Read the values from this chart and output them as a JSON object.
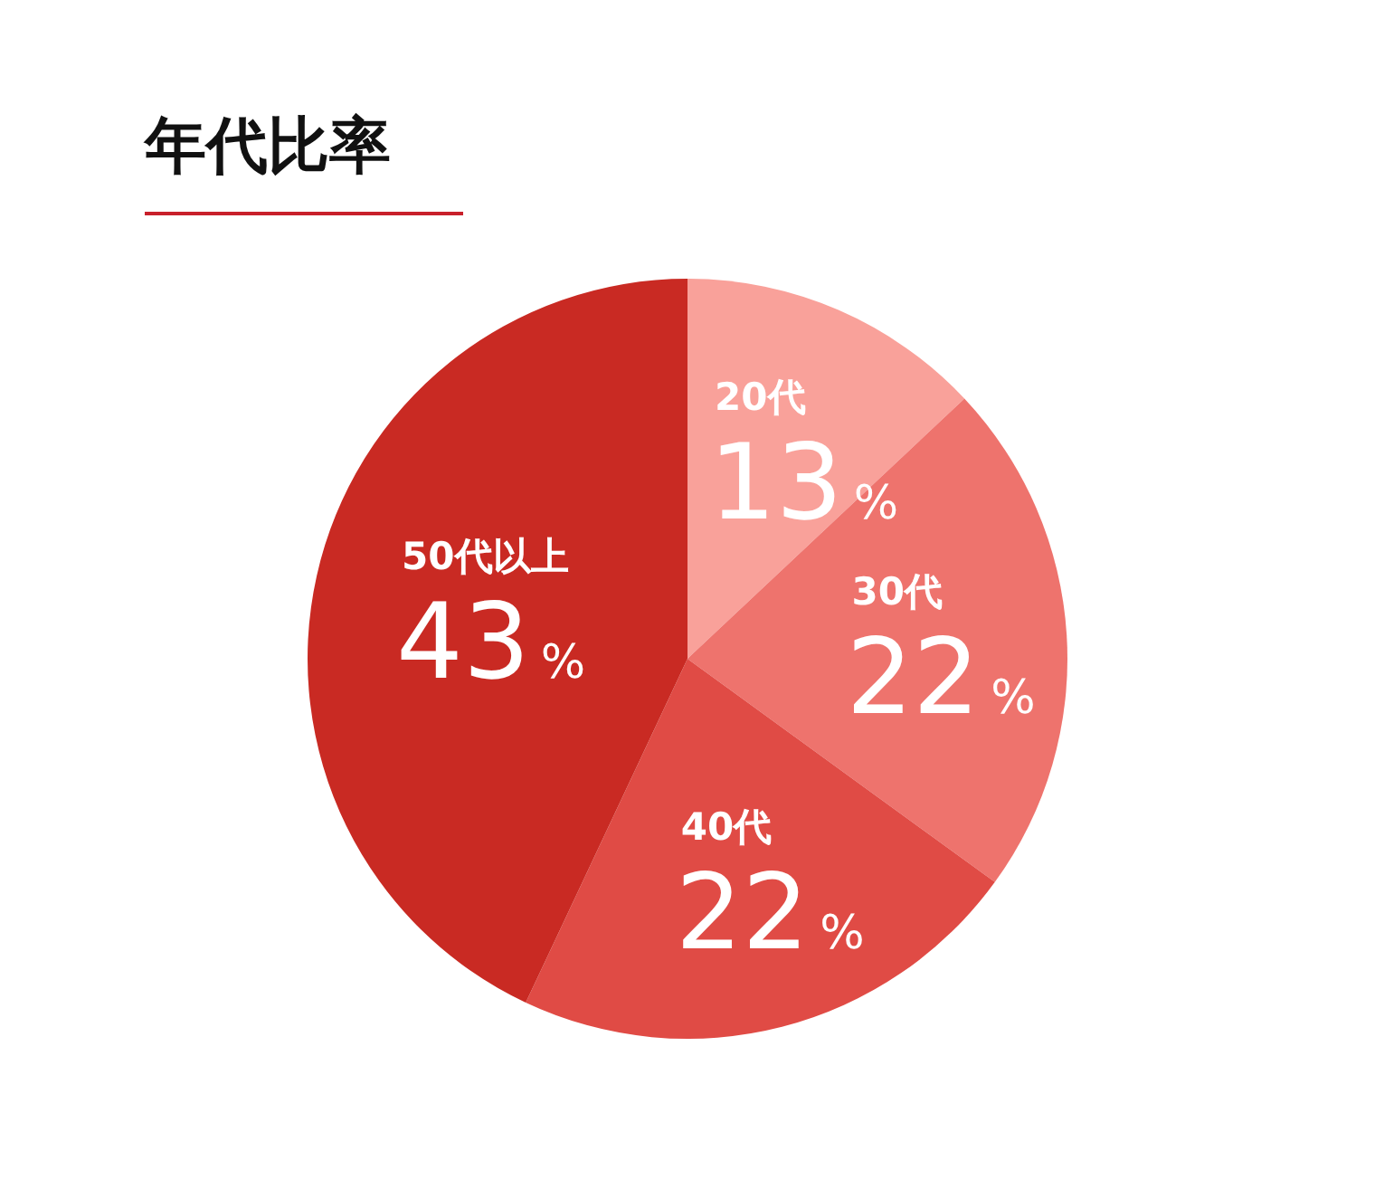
{
  "chart_data": {
    "type": "pie",
    "title": "年代比率",
    "categories": [
      "20代",
      "30代",
      "40代",
      "50代以上"
    ],
    "values": [
      13,
      22,
      22,
      43
    ],
    "colors": [
      "#f9a19a",
      "#ee736d",
      "#e04b45",
      "#c92a23"
    ],
    "value_labels": [
      "13%",
      "22%",
      "22%",
      "43%"
    ]
  }
}
